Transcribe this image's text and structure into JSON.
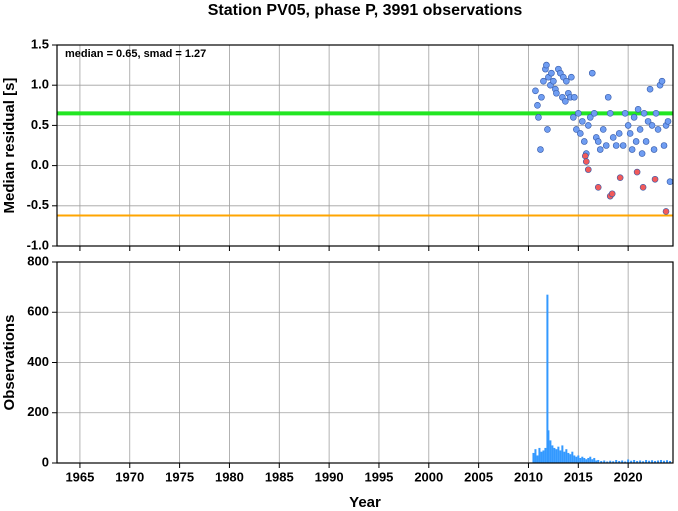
{
  "title": "Station PV05, phase P, 3991 observations",
  "chart_data": [
    {
      "type": "scatter",
      "ylabel": "Median residual [s]",
      "annotation": "median = 0.65, smad = 1.27",
      "xlim": [
        1962.7,
        2024.5
      ],
      "ylim": [
        -1.0,
        1.5
      ],
      "yticks": [
        1.5,
        {
          "value": 1.0,
          "label": "1.0"
        },
        0.5,
        {
          "value": 0.0,
          "label": "0.0"
        },
        -0.5,
        {
          "value": -1.0,
          "label": "-1.0"
        }
      ],
      "grid": true,
      "reference_lines": [
        {
          "value": 0.65,
          "color": "#22e622"
        },
        {
          "value": -0.62,
          "color": "#ffa500"
        }
      ],
      "series": [
        {
          "color": "#6f9df2",
          "x": [
            2010.7,
            2010.9,
            2011.0,
            2011.2,
            2011.3,
            2011.5,
            2011.7,
            2011.8,
            2011.9,
            2012.0,
            2012.2,
            2012.3,
            2012.5,
            2012.7,
            2012.8,
            2013.0,
            2013.2,
            2013.4,
            2013.5,
            2013.7,
            2013.8,
            2014.0,
            2014.2,
            2014.3,
            2014.5,
            2014.6,
            2014.8,
            2015.0,
            2015.2,
            2015.4,
            2015.6,
            2015.8,
            2016.0,
            2016.2,
            2016.4,
            2016.6,
            2016.8,
            2017.0,
            2017.2,
            2017.5,
            2017.8,
            2018.0,
            2018.2,
            2018.5,
            2018.8,
            2019.1,
            2019.5,
            2019.7,
            2020.0,
            2020.2,
            2020.4,
            2020.6,
            2020.8,
            2021.0,
            2021.2,
            2021.4,
            2021.6,
            2021.8,
            2022.0,
            2022.2,
            2022.4,
            2022.6,
            2022.8,
            2023.0,
            2023.2,
            2023.4,
            2023.6,
            2023.8,
            2024.0,
            2024.2
          ],
          "values": [
            0.93,
            0.75,
            0.6,
            0.2,
            0.85,
            1.05,
            1.2,
            1.25,
            0.45,
            1.1,
            1.0,
            1.15,
            1.05,
            0.95,
            0.9,
            1.2,
            1.15,
            0.85,
            1.1,
            0.8,
            1.05,
            0.9,
            0.85,
            1.1,
            0.6,
            0.85,
            0.45,
            0.65,
            0.4,
            0.55,
            0.3,
            0.15,
            0.5,
            0.6,
            1.15,
            0.65,
            0.35,
            0.3,
            0.2,
            0.45,
            0.25,
            0.85,
            0.65,
            0.35,
            0.25,
            0.4,
            0.25,
            0.65,
            0.5,
            0.4,
            0.2,
            0.6,
            0.3,
            0.7,
            0.45,
            0.15,
            0.65,
            0.3,
            0.55,
            0.95,
            0.5,
            0.2,
            0.65,
            0.45,
            1.0,
            1.05,
            0.25,
            0.5,
            0.55,
            -0.2
          ]
        },
        {
          "color": "#f25a5a",
          "x": [
            2015.7,
            2015.8,
            2016.0,
            2017.0,
            2018.2,
            2018.4,
            2019.2,
            2020.9,
            2021.5,
            2022.7,
            2023.8
          ],
          "values": [
            0.12,
            0.05,
            -0.05,
            -0.27,
            -0.38,
            -0.35,
            -0.15,
            -0.08,
            -0.27,
            -0.17,
            -0.57
          ]
        }
      ]
    },
    {
      "type": "bar",
      "ylabel": "Observations",
      "xlabel": "Year",
      "xlim": [
        1962.7,
        2024.5
      ],
      "ylim": [
        0,
        800
      ],
      "xticks": [
        1965,
        1970,
        1975,
        1980,
        1985,
        1990,
        1995,
        2000,
        2005,
        2010,
        2015,
        2020
      ],
      "yticks": [
        0,
        200,
        400,
        600,
        800
      ],
      "grid": true,
      "color": "#3399ff",
      "x": [
        2010.5,
        2010.7,
        2010.9,
        2011.1,
        2011.3,
        2011.5,
        2011.7,
        2011.9,
        2012.0,
        2012.2,
        2012.4,
        2012.6,
        2012.8,
        2013.0,
        2013.2,
        2013.4,
        2013.6,
        2013.8,
        2014.0,
        2014.2,
        2014.4,
        2014.6,
        2014.8,
        2015.0,
        2015.2,
        2015.4,
        2015.6,
        2015.8,
        2016.0,
        2016.2,
        2016.4,
        2016.6,
        2016.8,
        2017.0,
        2017.3,
        2017.6,
        2017.9,
        2018.2,
        2018.5,
        2018.8,
        2019.1,
        2019.4,
        2019.7,
        2020.0,
        2020.3,
        2020.6,
        2020.9,
        2021.2,
        2021.5,
        2021.8,
        2022.1,
        2022.4,
        2022.7,
        2023.0,
        2023.3,
        2023.6,
        2023.9,
        2024.2
      ],
      "values": [
        40,
        55,
        30,
        60,
        45,
        50,
        60,
        670,
        130,
        90,
        70,
        60,
        55,
        65,
        50,
        70,
        45,
        55,
        40,
        35,
        45,
        30,
        25,
        30,
        20,
        25,
        20,
        15,
        20,
        25,
        15,
        20,
        10,
        12,
        8,
        10,
        6,
        9,
        7,
        12,
        8,
        10,
        6,
        14,
        9,
        12,
        8,
        10,
        7,
        12,
        9,
        11,
        8,
        10,
        12,
        9,
        11,
        8
      ]
    }
  ]
}
